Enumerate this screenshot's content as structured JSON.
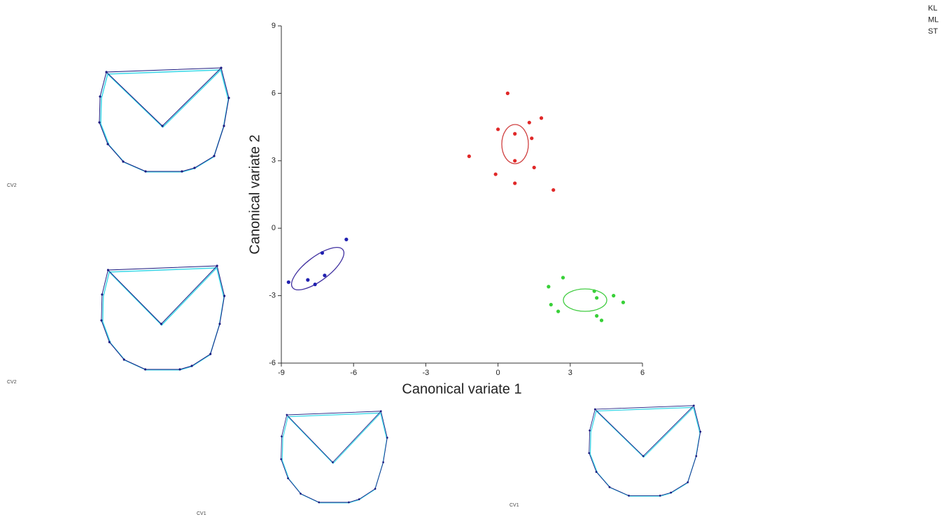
{
  "chart_data": {
    "type": "scatter",
    "x_label": "Canonical variate 1",
    "y_label": "Canonical variate 2",
    "xlim": [
      -9,
      6
    ],
    "xticks": [
      -9,
      -6,
      -3,
      0,
      3,
      6
    ],
    "ylim": [
      -6,
      9
    ],
    "yticks": [
      -6,
      -3,
      0,
      3,
      6,
      9
    ],
    "series": [
      {
        "name": "KL",
        "color": "#e02828",
        "x": [
          0.4,
          0.0,
          0.7,
          1.3,
          1.8,
          1.4,
          -1.2,
          0.7,
          1.5,
          -0.1,
          0.7,
          2.3
        ],
        "y": [
          6.0,
          4.4,
          4.2,
          4.7,
          4.9,
          4.0,
          3.2,
          3.0,
          2.7,
          2.4,
          2.0,
          1.7
        ]
      },
      {
        "name": "ML",
        "color": "#38d038",
        "x": [
          2.7,
          2.1,
          4.0,
          4.8,
          4.1,
          5.2,
          2.2,
          2.5,
          4.1,
          4.3
        ],
        "y": [
          -2.2,
          -2.6,
          -2.8,
          -3.0,
          -3.1,
          -3.3,
          -3.4,
          -3.7,
          -3.9,
          -4.1
        ]
      },
      {
        "name": "ST",
        "color": "#2020b0",
        "x": [
          -6.3,
          -7.3,
          -7.2,
          -7.9,
          -8.7,
          -7.6
        ],
        "y": [
          -0.5,
          -1.1,
          -2.1,
          -2.3,
          -2.4,
          -2.5
        ]
      }
    ]
  },
  "shape_panels": [
    {
      "label": "CV2"
    },
    {
      "label": "CV2"
    },
    {
      "label": "CV1"
    },
    {
      "label": "CV1"
    }
  ]
}
